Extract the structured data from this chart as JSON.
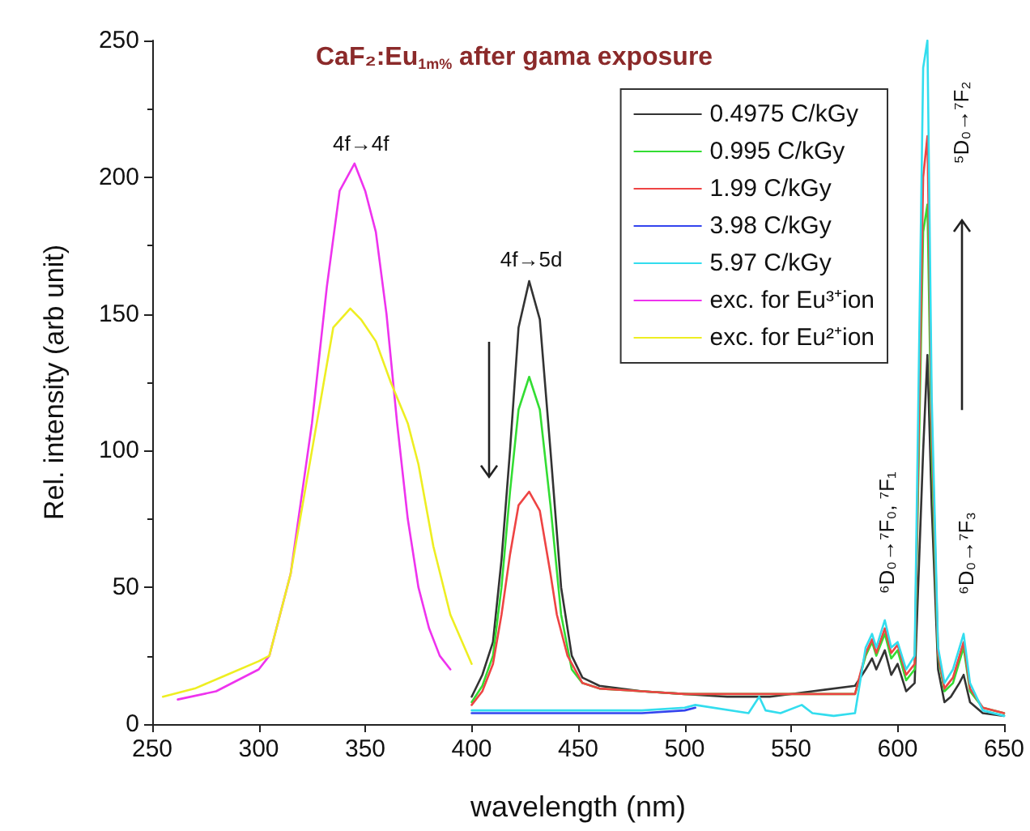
{
  "chart_data": {
    "type": "line",
    "title": "CaF₂:Eu$_{1m%}$ after gama exposure",
    "xlabel": "wavelength (nm)",
    "ylabel": "Rel. intensity (arb unit)",
    "xlim": [
      250,
      650
    ],
    "xticks": [
      250,
      300,
      350,
      400,
      450,
      500,
      550,
      600,
      650
    ],
    "ylim": [
      0,
      250
    ],
    "yticks": [
      0,
      50,
      100,
      150,
      200,
      250
    ],
    "grid": false,
    "legend": "top right",
    "marker": "none",
    "line_style": "solid",
    "annotations": [
      "4f→4f",
      "4f→5d",
      "⁵D₀→⁷F₂",
      "⁶D₀→⁷F₀, ⁷F₁",
      "⁶D₀→⁷F₃"
    ],
    "series": [
      {
        "name": "0.4975 C/kGy",
        "color": "#333333",
        "x": [
          400,
          405,
          410,
          414,
          418,
          422,
          427,
          432,
          437,
          442,
          447,
          452,
          460,
          480,
          500,
          520,
          540,
          560,
          580,
          585,
          588,
          590,
          594,
          597,
          600,
          604,
          608,
          612,
          614,
          616,
          619,
          622,
          625,
          629,
          631,
          634,
          640,
          650
        ],
        "values": [
          10,
          18,
          30,
          60,
          100,
          145,
          162,
          148,
          100,
          50,
          25,
          17,
          14,
          12,
          11,
          10,
          10,
          12,
          14,
          20,
          24,
          20,
          27,
          18,
          22,
          12,
          15,
          100,
          135,
          80,
          20,
          8,
          10,
          15,
          18,
          8,
          4,
          3
        ]
      },
      {
        "name": "0.995 C/kGy",
        "color": "#33dd33",
        "x": [
          400,
          405,
          410,
          414,
          418,
          422,
          427,
          432,
          437,
          442,
          447,
          452,
          460,
          480,
          500,
          520,
          540,
          560,
          580,
          585,
          588,
          590,
          594,
          597,
          600,
          604,
          608,
          612,
          614,
          616,
          619,
          622,
          626,
          631,
          634,
          640,
          650
        ],
        "values": [
          8,
          14,
          25,
          50,
          85,
          115,
          127,
          115,
          80,
          40,
          20,
          15,
          13,
          12,
          11,
          11,
          11,
          11,
          11,
          25,
          30,
          25,
          33,
          24,
          27,
          16,
          20,
          180,
          190,
          100,
          25,
          12,
          15,
          28,
          12,
          6,
          4
        ]
      },
      {
        "name": "1.99 C/kGy",
        "color": "#ee4444",
        "x": [
          400,
          405,
          410,
          414,
          418,
          422,
          427,
          432,
          437,
          440,
          445,
          452,
          460,
          480,
          500,
          520,
          540,
          560,
          580,
          585,
          588,
          590,
          594,
          597,
          600,
          604,
          608,
          612,
          614,
          616,
          619,
          622,
          626,
          631,
          634,
          640,
          650
        ],
        "values": [
          7,
          12,
          22,
          40,
          62,
          80,
          85,
          78,
          55,
          40,
          25,
          15,
          13,
          12,
          11,
          11,
          11,
          11,
          11,
          26,
          31,
          26,
          35,
          26,
          29,
          18,
          22,
          200,
          215,
          110,
          26,
          13,
          17,
          30,
          13,
          6,
          4
        ]
      },
      {
        "name": "3.98 C/kGy",
        "color": "#3344ee",
        "x": [
          400,
          420,
          440,
          460,
          480,
          500,
          505
        ],
        "values": [
          4,
          4,
          4,
          4,
          4,
          5,
          6
        ]
      },
      {
        "name": "5.97 C/kGy",
        "color": "#33ddee",
        "x": [
          400,
          420,
          440,
          460,
          480,
          500,
          505,
          530,
          535,
          538,
          545,
          555,
          560,
          570,
          580,
          585,
          588,
          590,
          594,
          597,
          600,
          604,
          608,
          612,
          614,
          616,
          619,
          622,
          626,
          631,
          634,
          640,
          650
        ],
        "values": [
          5,
          5,
          5,
          5,
          5,
          6,
          7,
          4,
          10,
          5,
          4,
          7,
          4,
          3,
          4,
          28,
          33,
          28,
          38,
          28,
          30,
          20,
          25,
          240,
          250,
          120,
          28,
          15,
          20,
          33,
          15,
          5,
          3
        ]
      },
      {
        "name": "exc. for Eu³⁺ion",
        "color": "#ee33ee",
        "x": [
          262,
          280,
          290,
          300,
          305,
          315,
          325,
          332,
          338,
          345,
          350,
          355,
          360,
          365,
          370,
          375,
          380,
          385,
          390
        ],
        "values": [
          9,
          12,
          16,
          20,
          25,
          55,
          110,
          160,
          195,
          205,
          195,
          180,
          150,
          110,
          75,
          50,
          35,
          25,
          20
        ]
      },
      {
        "name": "exc. for Eu²⁺ion",
        "color": "#eeee22",
        "x": [
          255,
          270,
          285,
          300,
          305,
          315,
          325,
          335,
          343,
          348,
          355,
          362,
          370,
          375,
          382,
          390,
          400
        ],
        "values": [
          10,
          13,
          18,
          23,
          25,
          55,
          100,
          145,
          152,
          148,
          140,
          125,
          110,
          95,
          65,
          40,
          22
        ]
      }
    ]
  }
}
